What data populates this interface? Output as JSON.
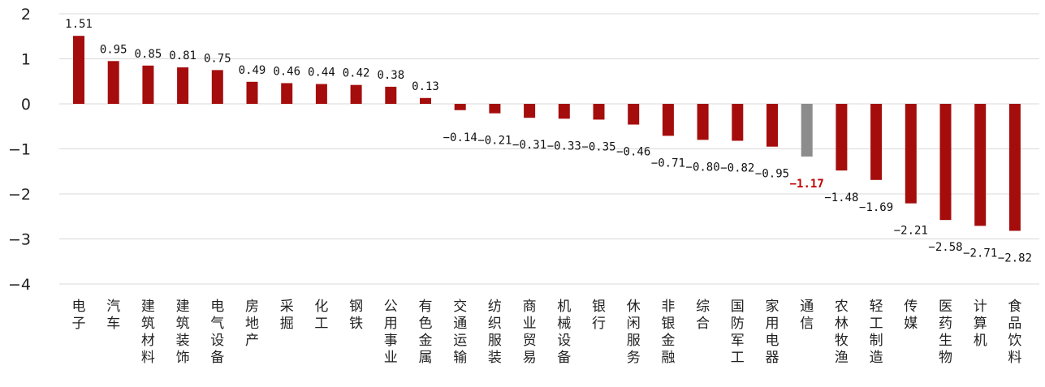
{
  "chart_data": {
    "type": "bar",
    "categories": [
      "电子",
      "汽车",
      "建筑材料",
      "建筑装饰",
      "电气设备",
      "房地产",
      "采掘",
      "化工",
      "钢铁",
      "公用事业",
      "有色金属",
      "交通运输",
      "纺织服装",
      "商业贸易",
      "机械设备",
      "银行",
      "休闲服务",
      "非银金融",
      "综合",
      "国防军工",
      "家用电器",
      "通信",
      "农林牧渔",
      "轻工制造",
      "传媒",
      "医药生物",
      "计算机",
      "食品饮料"
    ],
    "values": [
      1.51,
      0.95,
      0.85,
      0.81,
      0.75,
      0.49,
      0.46,
      0.44,
      0.42,
      0.38,
      0.13,
      -0.14,
      -0.21,
      -0.31,
      -0.33,
      -0.35,
      -0.46,
      -0.71,
      -0.8,
      -0.82,
      -0.95,
      -1.17,
      -1.48,
      -1.69,
      -2.21,
      -2.58,
      -2.71,
      -2.82
    ],
    "value_labels": [
      "1.51",
      "0.95",
      "0.85",
      "0.81",
      "0.75",
      "0.49",
      "0.46",
      "0.44",
      "0.42",
      "0.38",
      "0.13",
      "−0.14",
      "−0.21",
      "−0.31",
      "−0.33",
      "−0.35",
      "−0.46",
      "−0.71",
      "−0.80",
      "−0.82",
      "−0.95",
      "−1.17",
      "−1.48",
      "−1.69",
      "−2.21",
      "−2.58",
      "−2.71",
      "−2.82"
    ],
    "highlight_category": "通信",
    "yticks": [
      "2",
      "1",
      "0",
      "−1",
      "−2",
      "−3",
      "−4"
    ],
    "ylim": [
      -4,
      2
    ],
    "grid": true,
    "colors": {
      "bar": "#a50d0d",
      "highlight_bar": "#8c8c8c",
      "highlight_label": "#c00000"
    },
    "title": "",
    "xlabel": "",
    "ylabel": ""
  }
}
